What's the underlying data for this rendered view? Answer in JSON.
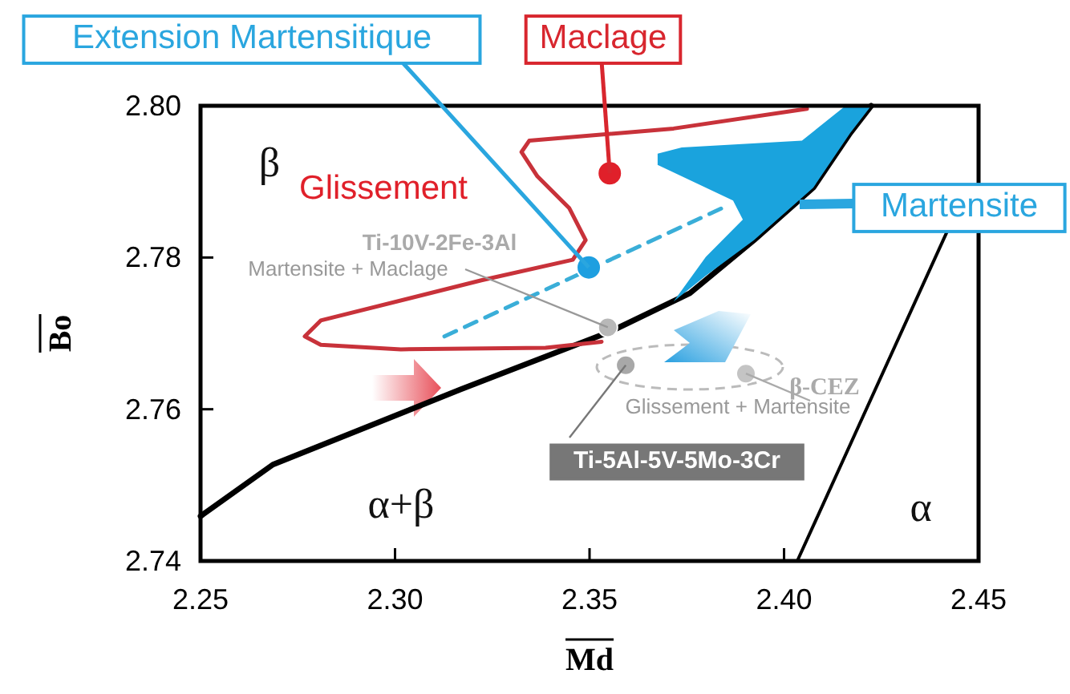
{
  "chart_data": {
    "type": "line",
    "xlabel": "Md",
    "ylabel": "Bo",
    "xlim": [
      2.25,
      2.45
    ],
    "ylim": [
      2.74,
      2.8
    ],
    "xticks": [
      2.25,
      {
        "value": 2.3,
        "label": "2.30"
      },
      2.35,
      {
        "value": 2.4,
        "label": "2.40"
      },
      2.45
    ],
    "yticks": [
      2.74,
      2.76,
      2.78,
      {
        "value": 2.8,
        "label": "2.80"
      }
    ],
    "grid": false,
    "series": [
      {
        "color": "#000000",
        "x": [
          2.25,
          2.2686,
          2.3168,
          2.3552,
          2.3758,
          2.3923,
          2.4075,
          2.417,
          2.4224
        ],
        "values": [
          2.7459,
          2.7527,
          2.7626,
          2.7702,
          2.7753,
          2.7823,
          2.7892,
          2.7964,
          2.8
        ]
      },
      {
        "color": "#000000",
        "x": [
          2.4034,
          2.4418
        ],
        "values": [
          2.74,
          2.7833
        ]
      },
      {
        "type": "area",
        "color": "#1aa3dd",
        "x": [
          2.4158,
          2.4224,
          2.417,
          2.4075,
          2.3923,
          2.3799,
          2.3716,
          2.3799,
          2.3894,
          2.3869,
          2.3675,
          2.3675,
          2.3737,
          2.4046
        ],
        "values": [
          2.8,
          2.8,
          2.7964,
          2.7892,
          2.7823,
          2.7776,
          2.7742,
          2.7801,
          2.785,
          2.7875,
          2.7922,
          2.7937,
          2.7945,
          2.7954
        ]
      },
      {
        "color": "#c8323a",
        "x": [
          2.4059,
          2.3716,
          2.3345,
          2.3325,
          2.3366,
          2.3448,
          2.349,
          2.3457,
          2.3222,
          2.2809,
          2.2768,
          2.2809,
          2.3015,
          2.3387,
          2.3531
        ],
        "values": [
          2.7996,
          2.797,
          2.7954,
          2.7939,
          2.7907,
          2.7865,
          2.7823,
          2.7797,
          2.777,
          2.7717,
          2.7696,
          2.7685,
          2.7679,
          2.7681,
          2.7689
        ]
      },
      {
        "color": "#3aaed8",
        "line_style": "dashed",
        "x": [
          2.3127,
          2.384
        ],
        "values": [
          2.7696,
          2.7865
        ]
      },
      {
        "type": "scatter",
        "marker": "circle",
        "color": "#e0202a",
        "x": [
          2.3552
        ],
        "values": [
          2.7911
        ]
      },
      {
        "type": "scatter",
        "marker": "circle",
        "color": "#1e9fe0",
        "x": [
          2.3498
        ],
        "values": [
          2.7787
        ]
      },
      {
        "type": "scatter",
        "marker": "circle",
        "color": "#b8b8b8",
        "x": [
          2.3547
        ],
        "values": [
          2.7708
        ]
      },
      {
        "type": "scatter",
        "marker": "circle",
        "color": "#a8a8a8",
        "x": [
          2.3593
        ],
        "values": [
          2.7658
        ]
      },
      {
        "type": "scatter",
        "marker": "circle",
        "color": "#c4c4c4",
        "x": [
          2.3902
        ],
        "values": [
          2.7647
        ]
      }
    ],
    "annotations": [
      {
        "text": "Extension Martensitique",
        "x": 2.3498,
        "y": 2.7787
      },
      {
        "text": "Maclage",
        "x": 2.3552,
        "y": 2.7911
      },
      {
        "text": "Martensite",
        "x": 2.404,
        "y": 2.787
      },
      "β",
      "Glissement",
      "Ti-10V-2Fe-3Al",
      {
        "text": "Martensite + Maclage",
        "x": 2.3547,
        "y": 2.7708
      },
      {
        "text": "Ti-5Al-5V-5Mo-3Cr",
        "x": 2.3593,
        "y": 2.7658
      },
      "Glissement + Martensite",
      {
        "text": "β-CEZ",
        "x": 2.3902,
        "y": 2.7647
      },
      "α+β",
      "α"
    ]
  }
}
